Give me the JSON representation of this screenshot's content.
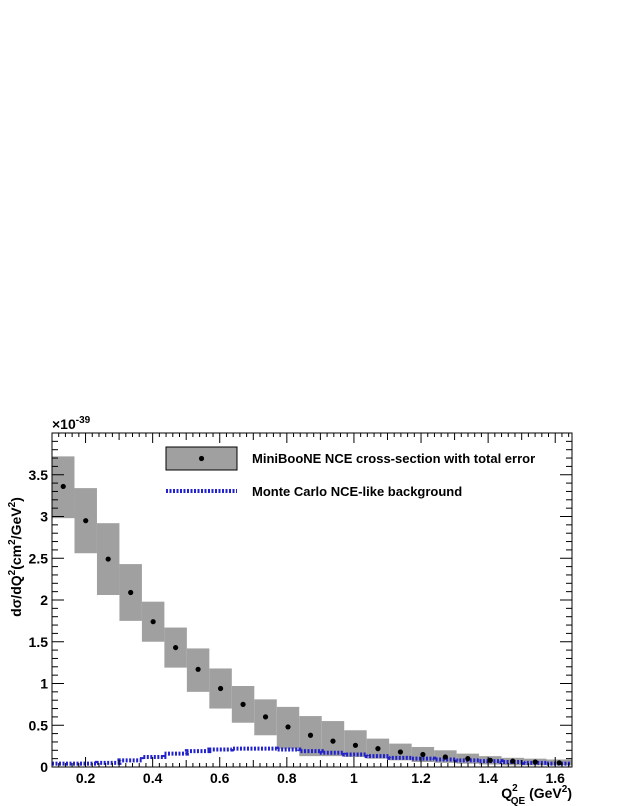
{
  "chart_data": {
    "type": "scatter",
    "ylabel_parts": [
      "d",
      "σ",
      "/dQ",
      "2",
      "(cm",
      "2",
      "/GeV",
      "2",
      ")"
    ],
    "xlabel_parts": [
      "Q",
      "2",
      "QE",
      " (GeV",
      "2",
      ")"
    ],
    "y_multiplier_parts": [
      "×10",
      "-39"
    ],
    "xlim": [
      0.1,
      1.65
    ],
    "ylim": [
      0,
      4.0
    ],
    "x_ticks": [
      0.2,
      0.4,
      0.6,
      0.8,
      1,
      1.2,
      1.4,
      1.6
    ],
    "x_tick_labels": [
      "0.2",
      "0.4",
      "0.6",
      "0.8",
      "1",
      "1.2",
      "1.4",
      "1.6"
    ],
    "y_ticks": [
      0,
      0.5,
      1,
      1.5,
      2,
      2.5,
      3,
      3.5
    ],
    "y_tick_labels": [
      "0",
      "0.5",
      "1",
      "1.5",
      "2",
      "2.5",
      "3",
      "3.5"
    ],
    "bin_edges": [
      0.1,
      0.167,
      0.234,
      0.301,
      0.368,
      0.435,
      0.502,
      0.569,
      0.636,
      0.703,
      0.77,
      0.837,
      0.904,
      0.971,
      1.038,
      1.105,
      1.172,
      1.239,
      1.306,
      1.373,
      1.44,
      1.507,
      1.574,
      1.65
    ],
    "series": [
      {
        "name": "MiniBooNE NCE cross-section with total error",
        "style": "points-with-error-boxes",
        "values": [
          3.36,
          2.95,
          2.49,
          2.09,
          1.74,
          1.43,
          1.17,
          0.94,
          0.75,
          0.6,
          0.48,
          0.38,
          0.31,
          0.26,
          0.22,
          0.18,
          0.15,
          0.12,
          0.1,
          0.08,
          0.07,
          0.06,
          0.05
        ],
        "err_low": [
          2.98,
          2.56,
          2.06,
          1.75,
          1.5,
          1.19,
          0.9,
          0.7,
          0.53,
          0.38,
          0.22,
          0.13,
          0.13,
          0.12,
          0.1,
          0.08,
          0.06,
          0.05,
          0.04,
          0.03,
          0.02,
          0.02,
          0.02
        ],
        "err_high": [
          3.72,
          3.34,
          2.92,
          2.43,
          1.98,
          1.67,
          1.42,
          1.18,
          0.97,
          0.81,
          0.72,
          0.61,
          0.55,
          0.44,
          0.34,
          0.28,
          0.24,
          0.2,
          0.16,
          0.13,
          0.11,
          0.1,
          0.09
        ]
      },
      {
        "name": "Monte Carlo NCE-like background",
        "style": "dotted-step",
        "values": [
          0.04,
          0.04,
          0.05,
          0.08,
          0.12,
          0.16,
          0.19,
          0.21,
          0.22,
          0.22,
          0.21,
          0.19,
          0.17,
          0.15,
          0.13,
          0.11,
          0.1,
          0.09,
          0.08,
          0.07,
          0.06,
          0.05,
          0.04
        ]
      }
    ],
    "colors": {
      "band_fill": "#a0a0a0",
      "band_stroke": "#808080",
      "point": "#000000",
      "background_line": "#2222cc",
      "axis": "#000000"
    },
    "grid": false,
    "legend_position": "top-right"
  }
}
